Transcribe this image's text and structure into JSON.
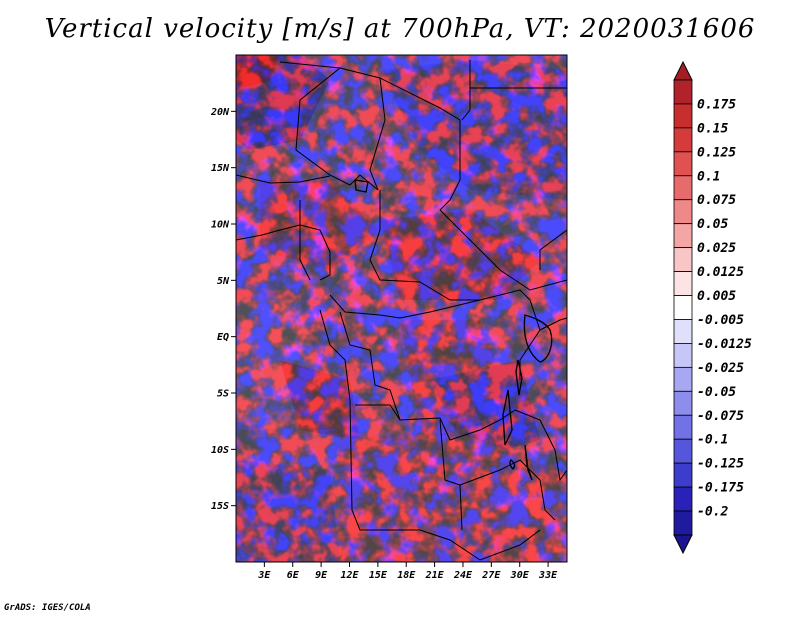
{
  "title": "Vertical velocity [m/s] at 700hPa, VT: 2020031606",
  "credit": "GrADS: IGES/COLA",
  "map": {
    "lon_range": [
      0,
      35
    ],
    "lat_range": [
      -20,
      25
    ],
    "lat_ticks": [
      "20N",
      "15N",
      "10N",
      "5N",
      "EQ",
      "5S",
      "10S",
      "15S"
    ],
    "lat_values": [
      20,
      15,
      10,
      5,
      0,
      -5,
      -10,
      -15
    ],
    "lon_ticks": [
      "3E",
      "6E",
      "9E",
      "12E",
      "15E",
      "18E",
      "21E",
      "24E",
      "27E",
      "30E",
      "33E"
    ],
    "lon_values": [
      3,
      6,
      9,
      12,
      15,
      18,
      21,
      24,
      27,
      30,
      33
    ]
  },
  "colorbar": {
    "labels": [
      "0.175",
      "0.15",
      "0.125",
      "0.1",
      "0.075",
      "0.05",
      "0.025",
      "0.0125",
      "0.005",
      "-0.005",
      "-0.0125",
      "-0.025",
      "-0.05",
      "-0.075",
      "-0.1",
      "-0.125",
      "-0.175",
      "-0.2"
    ],
    "colors": [
      "#b0232a",
      "#c72e2e",
      "#d63b3b",
      "#e05252",
      "#e86b6b",
      "#ef8888",
      "#f4a6a6",
      "#f8c6c6",
      "#fce4e4",
      "#ffffff",
      "#e0e0fb",
      "#c6c6f7",
      "#a8a8f2",
      "#8d8dee",
      "#7272e6",
      "#5656dc",
      "#3d3dcc",
      "#2a22b8",
      "#1f1a9e"
    ]
  }
}
